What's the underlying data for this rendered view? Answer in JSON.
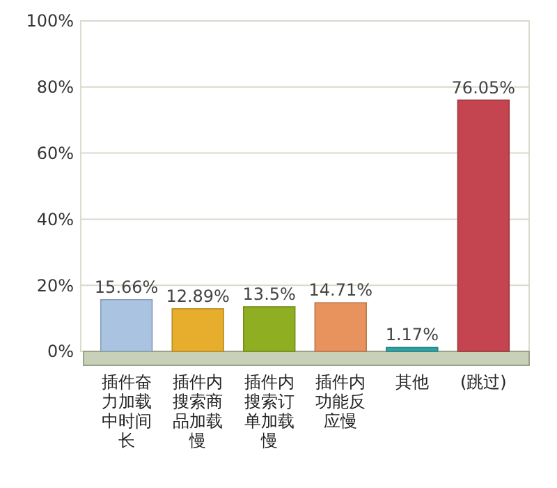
{
  "chart_data": {
    "type": "bar",
    "categories": [
      "插件奋力加载中时间长",
      "插件内搜索商品加载慢",
      "插件内搜索订单加载慢",
      "插件内功能反应慢",
      "其他",
      "(跳过)"
    ],
    "values": [
      15.66,
      12.89,
      13.5,
      14.71,
      1.17,
      76.05
    ],
    "colors": [
      "#a9c3e0",
      "#e6ae2c",
      "#8fae22",
      "#e8925e",
      "#2fa3a6",
      "#c4444f"
    ],
    "value_labels": [
      "15.66%",
      "12.89%",
      "13.5%",
      "14.71%",
      "1.17%",
      "76.05%"
    ],
    "ylim": [
      0,
      100
    ],
    "yticks": [
      {
        "value": 0,
        "label": "0%"
      },
      {
        "value": 20,
        "label": "20%"
      },
      {
        "value": 40,
        "label": "40%"
      },
      {
        "value": 60,
        "label": "60%"
      },
      {
        "value": 80,
        "label": "80%"
      },
      {
        "value": 100,
        "label": "100%"
      }
    ],
    "grid": "y"
  }
}
